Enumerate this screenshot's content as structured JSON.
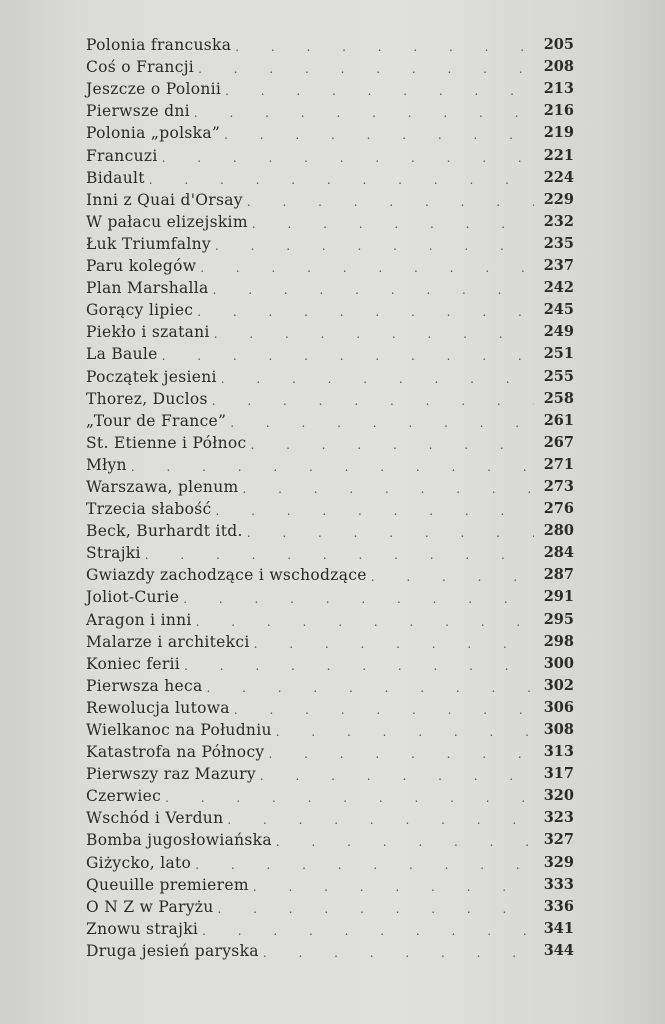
{
  "toc": {
    "entries": [
      {
        "title": "Polonia francuska",
        "page": "205"
      },
      {
        "title": "Coś o Francji",
        "page": "208"
      },
      {
        "title": "Jeszcze o Polonii",
        "page": "213"
      },
      {
        "title": "Pierwsze dni",
        "page": "216"
      },
      {
        "title": "Polonia „polska”",
        "page": "219"
      },
      {
        "title": "Francuzi",
        "page": "221"
      },
      {
        "title": "Bidault",
        "page": "224"
      },
      {
        "title": "Inni z Quai d'Orsay",
        "page": "229"
      },
      {
        "title": "W pałacu elizejskim",
        "page": "232"
      },
      {
        "title": "Łuk Triumfalny",
        "page": "235"
      },
      {
        "title": "Paru kolegów",
        "page": "237"
      },
      {
        "title": "Plan Marshalla",
        "page": "242"
      },
      {
        "title": "Gorący lipiec",
        "page": "245"
      },
      {
        "title": "Piekło i szatani",
        "page": "249"
      },
      {
        "title": "La Baule",
        "page": "251"
      },
      {
        "title": "Początek jesieni",
        "page": "255"
      },
      {
        "title": "Thorez, Duclos",
        "page": "258"
      },
      {
        "title": "„Tour de France”",
        "page": "261"
      },
      {
        "title": "St. Etienne i Północ",
        "page": "267"
      },
      {
        "title": "Młyn",
        "page": "271"
      },
      {
        "title": "Warszawa, plenum",
        "page": "273"
      },
      {
        "title": "Trzecia słabość",
        "page": "276"
      },
      {
        "title": "Beck, Burhardt itd.",
        "page": "280"
      },
      {
        "title": "Strajki",
        "page": "284"
      },
      {
        "title": "Gwiazdy zachodzące i wschodzące",
        "page": "287"
      },
      {
        "title": "Joliot-Curie",
        "page": "291"
      },
      {
        "title": "Aragon i inni",
        "page": "295"
      },
      {
        "title": "Malarze i architekci",
        "page": "298"
      },
      {
        "title": "Koniec ferii",
        "page": "300"
      },
      {
        "title": "Pierwsza heca",
        "page": "302"
      },
      {
        "title": "Rewolucja lutowa",
        "page": "306"
      },
      {
        "title": "Wielkanoc na Południu",
        "page": "308"
      },
      {
        "title": "Katastrofa na Północy",
        "page": "313"
      },
      {
        "title": "Pierwszy raz Mazury",
        "page": "317"
      },
      {
        "title": "Czerwiec",
        "page": "320"
      },
      {
        "title": "Wschód i Verdun",
        "page": "323"
      },
      {
        "title": "Bomba jugosłowiańska",
        "page": "327"
      },
      {
        "title": "Giżycko, lato",
        "page": "329"
      },
      {
        "title": "Queuille premierem",
        "page": "333"
      },
      {
        "title": "O N Z w Paryżu",
        "page": "336"
      },
      {
        "title": "Znowu strajki",
        "page": "341"
      },
      {
        "title": "Druga jesień paryska",
        "page": "344"
      }
    ]
  }
}
